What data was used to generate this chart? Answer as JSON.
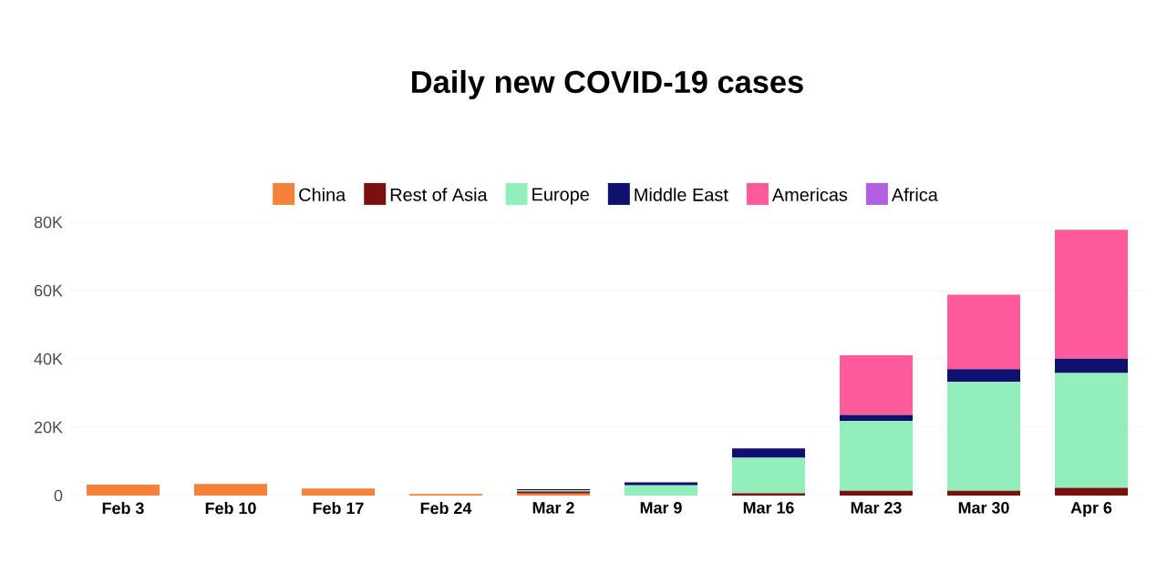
{
  "chart_data": {
    "type": "bar",
    "title": "Daily new COVID-19 cases",
    "stacked": true,
    "legend": "top",
    "grid": "y",
    "categories": [
      "Feb 3",
      "Feb 10",
      "Feb 17",
      "Feb 24",
      "Mar 2",
      "Mar 9",
      "Mar 16",
      "Mar 23",
      "Mar 30",
      "Apr 6"
    ],
    "ylim": [
      0,
      80000
    ],
    "yticks": [
      0,
      {
        "value": 20000,
        "label": "20K"
      },
      {
        "value": 40000,
        "label": "40K"
      },
      {
        "value": 60000,
        "label": "60K"
      },
      {
        "value": 80000,
        "label": "80K"
      }
    ],
    "series": [
      {
        "name": "China",
        "color": "#f5813a",
        "values": [
          3200,
          3400,
          2100,
          500,
          600,
          0,
          0,
          0,
          0,
          0
        ]
      },
      {
        "name": "Rest of Asia",
        "color": "#7a1010",
        "values": [
          0,
          0,
          0,
          0,
          600,
          0,
          700,
          1400,
          1400,
          2300
        ]
      },
      {
        "name": "Europe",
        "color": "#92eebb",
        "values": [
          0,
          0,
          0,
          0,
          400,
          3000,
          10400,
          20400,
          31900,
          33600
        ]
      },
      {
        "name": "Middle East",
        "color": "#101070",
        "values": [
          0,
          0,
          0,
          0,
          300,
          900,
          2700,
          1800,
          3700,
          4200
        ]
      },
      {
        "name": "Americas",
        "color": "#ff5a9a",
        "values": [
          0,
          0,
          0,
          0,
          0,
          0,
          0,
          17500,
          21800,
          37700
        ]
      },
      {
        "name": "Africa",
        "color": "#b060e0",
        "values": [
          0,
          0,
          0,
          0,
          0,
          0,
          0,
          0,
          0,
          0
        ]
      }
    ]
  }
}
